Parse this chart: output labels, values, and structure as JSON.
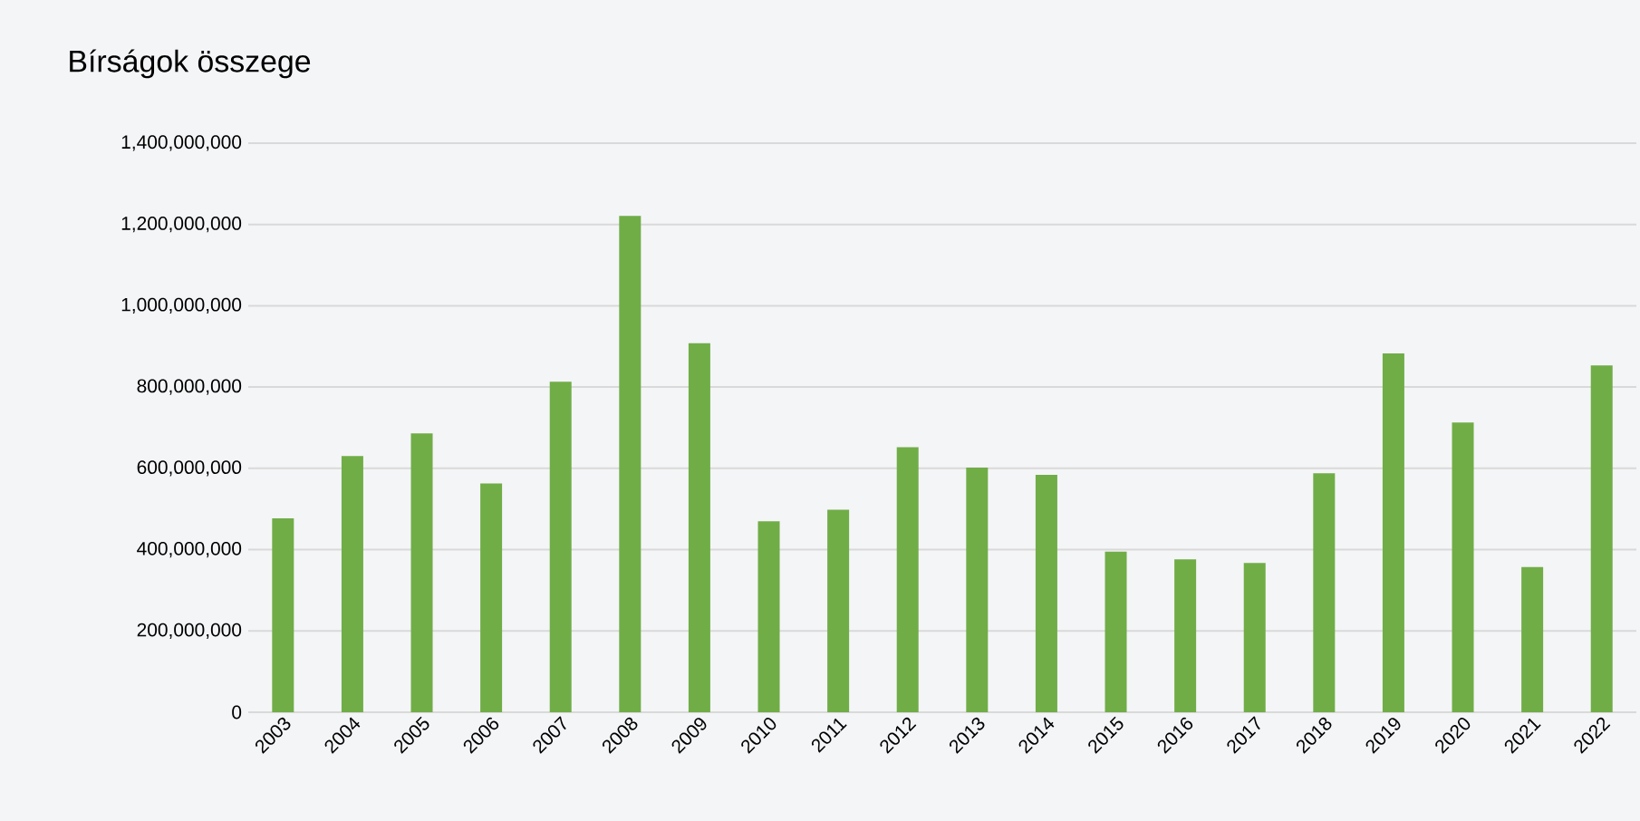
{
  "chart_data": {
    "type": "bar",
    "title": "Bírságok összege",
    "categories": [
      "2003",
      "2004",
      "2005",
      "2006",
      "2007",
      "2008",
      "2009",
      "2010",
      "2011",
      "2012",
      "2013",
      "2014",
      "2015",
      "2016",
      "2017",
      "2018",
      "2019",
      "2020",
      "2021",
      "2022"
    ],
    "values": [
      477000000,
      630000000,
      686000000,
      563000000,
      813000000,
      1221000000,
      908000000,
      470000000,
      498000000,
      652000000,
      602000000,
      584000000,
      395000000,
      376000000,
      367000000,
      588000000,
      883000000,
      713000000,
      357000000,
      853000000
    ],
    "color": "#70ad47",
    "ylim": [
      0,
      1400000000
    ],
    "yticks": [
      {
        "value": 0,
        "label": "0"
      },
      {
        "value": 200000000,
        "label": "200,000,000"
      },
      {
        "value": 400000000,
        "label": "400,000,000"
      },
      {
        "value": 600000000,
        "label": "600,000,000"
      },
      {
        "value": 800000000,
        "label": "800,000,000"
      },
      {
        "value": 1000000000,
        "label": "1,000,000,000"
      },
      {
        "value": 1200000000,
        "label": "1,200,000,000"
      },
      {
        "value": 1400000000,
        "label": "1,400,000,000"
      }
    ],
    "grid": "y"
  }
}
